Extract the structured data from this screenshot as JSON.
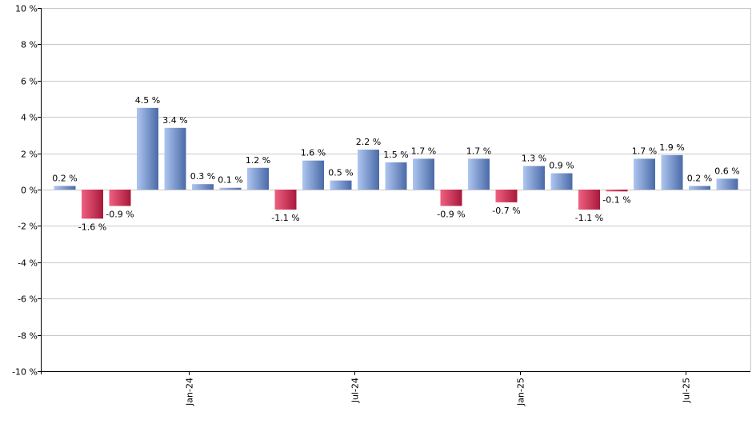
{
  "chart_data": {
    "type": "bar",
    "title": "",
    "xlabel": "",
    "ylabel": "",
    "ylim": [
      -10,
      10
    ],
    "y_ticks": [
      10,
      8,
      6,
      4,
      2,
      0,
      -2,
      -4,
      -6,
      -8,
      -10
    ],
    "y_tick_labels": [
      "10 %",
      "8 %",
      "6 %",
      "4 %",
      "2 %",
      "0 %",
      "-2 %",
      "-4 %",
      "-6 %",
      "-8 %",
      "-10 %"
    ],
    "x_tick_labels": [
      {
        "label": "Jan-24",
        "index": 5
      },
      {
        "label": "Jul-24",
        "index": 11
      },
      {
        "label": "Jan-25",
        "index": 17
      },
      {
        "label": "Jul-25",
        "index": 23
      }
    ],
    "values": [
      0.2,
      -1.6,
      -0.9,
      4.5,
      3.4,
      0.3,
      0.1,
      1.2,
      -1.1,
      1.6,
      0.5,
      2.2,
      1.5,
      1.7,
      -0.9,
      1.7,
      -0.7,
      1.3,
      0.9,
      -1.1,
      -0.1,
      1.7,
      1.9,
      0.2,
      0.6
    ],
    "labels": [
      "0.2 %",
      "-1.6 %",
      "-0.9 %",
      "4.5 %",
      "3.4 %",
      "0.3 %",
      "0.1 %",
      "1.2 %",
      "-1.1 %",
      "1.6 %",
      "0.5 %",
      "2.2 %",
      "1.5 %",
      "1.7 %",
      "-0.9 %",
      "1.7 %",
      "-0.7 %",
      "1.3 %",
      "0.9 %",
      "-1.1 %",
      "-0.1 %",
      "1.7 %",
      "1.9 %",
      "0.2 %",
      "0.6 %"
    ],
    "colors": {
      "positive_light": "#aec6f0",
      "positive_dark": "#4a6aa8",
      "negative_light": "#f06080",
      "negative_dark": "#a8183a",
      "grid": "#c8c8c8"
    },
    "grid": true
  }
}
